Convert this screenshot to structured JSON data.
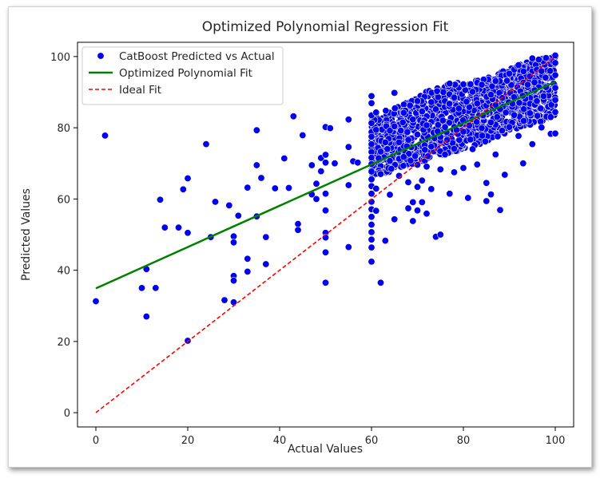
{
  "chart_data": {
    "type": "scatter",
    "title": "Optimized Polynomial Regression Fit",
    "xlabel": "Actual Values",
    "ylabel": "Predicted Values",
    "xlim": [
      -4,
      104
    ],
    "ylim": [
      -4,
      104
    ],
    "xticks": [
      0,
      20,
      40,
      60,
      80,
      100
    ],
    "yticks": [
      0,
      20,
      40,
      60,
      80,
      100
    ],
    "grid": false,
    "legend_position": "top-left",
    "series": [
      {
        "name": "CatBoost Predicted vs Actual",
        "kind": "scatter",
        "color": "#0000ee",
        "points": [
          [
            0,
            31.3
          ],
          [
            2,
            77.8
          ],
          [
            10,
            35
          ],
          [
            11,
            40.3
          ],
          [
            11,
            27
          ],
          [
            13,
            35
          ],
          [
            14,
            59.8
          ],
          [
            15,
            52
          ],
          [
            18,
            52
          ],
          [
            19,
            62.7
          ],
          [
            20,
            65.8
          ],
          [
            20,
            50.5
          ],
          [
            20,
            20.2
          ],
          [
            24,
            75.4
          ],
          [
            25,
            49.3
          ],
          [
            26,
            59.2
          ],
          [
            28,
            31.6
          ],
          [
            29,
            58.2
          ],
          [
            30,
            49.5
          ],
          [
            30,
            47.8
          ],
          [
            30,
            38.4
          ],
          [
            30,
            37.1
          ],
          [
            30,
            31
          ],
          [
            31,
            55.3
          ],
          [
            33,
            63.2
          ],
          [
            33,
            43.2
          ],
          [
            33,
            39.6
          ],
          [
            35,
            79.3
          ],
          [
            35,
            69.5
          ],
          [
            35,
            55.1
          ],
          [
            36,
            65.9
          ],
          [
            37,
            49.3
          ],
          [
            37,
            41.7
          ],
          [
            39,
            63
          ],
          [
            41,
            71.4
          ],
          [
            42,
            63.1
          ],
          [
            43,
            83.2
          ],
          [
            44,
            53
          ],
          [
            44,
            51.3
          ],
          [
            45,
            77.9
          ],
          [
            47,
            69.5
          ],
          [
            47,
            61.3
          ],
          [
            48,
            64.3
          ],
          [
            48,
            60
          ],
          [
            49,
            71.5
          ],
          [
            49,
            67.8
          ],
          [
            50,
            80.2
          ],
          [
            50,
            72.4
          ],
          [
            50,
            70.2
          ],
          [
            50,
            61.5
          ],
          [
            50,
            56.8
          ],
          [
            50,
            50.5
          ],
          [
            50,
            49.2
          ],
          [
            50,
            45
          ],
          [
            50,
            36.5
          ],
          [
            51,
            79.9
          ],
          [
            52,
            70
          ],
          [
            55,
            82.3
          ],
          [
            55,
            74.6
          ],
          [
            55,
            63.9
          ],
          [
            55,
            46.5
          ],
          [
            56,
            70.6
          ],
          [
            57,
            70.2
          ],
          [
            60,
            88.9
          ],
          [
            60,
            86.9
          ],
          [
            60,
            83.5
          ],
          [
            60,
            81.3
          ],
          [
            60,
            78.8
          ],
          [
            60,
            77.5
          ],
          [
            60,
            75.4
          ],
          [
            60,
            73.2
          ],
          [
            60,
            71.6
          ],
          [
            60,
            69.8
          ],
          [
            60,
            67.7
          ],
          [
            60,
            65.5
          ],
          [
            60,
            63.6
          ],
          [
            60,
            61.5
          ],
          [
            60,
            59.2
          ],
          [
            60,
            57.1
          ],
          [
            60,
            55
          ],
          [
            60,
            52.8
          ],
          [
            60,
            50.7
          ],
          [
            60,
            48.6
          ],
          [
            60,
            46.4
          ],
          [
            60,
            42.4
          ],
          [
            61,
            84.3
          ],
          [
            61,
            79.4
          ],
          [
            61,
            62.9
          ],
          [
            61,
            56.7
          ],
          [
            62,
            36.5
          ],
          [
            62,
            67
          ],
          [
            62,
            73.3
          ],
          [
            63,
            75.9
          ],
          [
            63,
            48.3
          ],
          [
            64,
            79.2
          ],
          [
            64,
            70.7
          ],
          [
            64,
            61.2
          ],
          [
            65,
            89.8
          ],
          [
            65,
            80.4
          ],
          [
            65,
            54.3
          ],
          [
            66,
            66.5
          ],
          [
            66,
            75.9
          ],
          [
            67,
            84.2
          ],
          [
            67,
            71.8
          ],
          [
            68,
            64.7
          ],
          [
            68,
            57.4
          ],
          [
            69,
            82.3
          ],
          [
            69,
            59.1
          ],
          [
            69,
            53.8
          ],
          [
            70,
            87.5
          ],
          [
            70,
            78.1
          ],
          [
            70,
            69.6
          ],
          [
            70,
            63.4
          ],
          [
            70,
            56.8
          ],
          [
            71,
            84.6
          ],
          [
            71,
            65.2
          ],
          [
            71,
            59.1
          ],
          [
            72,
            80.7
          ],
          [
            72,
            69.1
          ],
          [
            72,
            55.9
          ],
          [
            73,
            87.2
          ],
          [
            73,
            74.7
          ],
          [
            73,
            62.8
          ],
          [
            74,
            85.2
          ],
          [
            74,
            49.4
          ],
          [
            75,
            50
          ],
          [
            75,
            68.3
          ],
          [
            76,
            80.2
          ],
          [
            76,
            72.5
          ],
          [
            77,
            92.4
          ],
          [
            77,
            61.5
          ],
          [
            78,
            88.5
          ],
          [
            78,
            74.1
          ],
          [
            78,
            67.5
          ],
          [
            79,
            85.4
          ],
          [
            80,
            92.2
          ],
          [
            80,
            78.9
          ],
          [
            80,
            68.7
          ],
          [
            81,
            60.3
          ],
          [
            82,
            90.1
          ],
          [
            82,
            74
          ],
          [
            83,
            86.8
          ],
          [
            83,
            69.7
          ],
          [
            84,
            92.1
          ],
          [
            84,
            79.9
          ],
          [
            85,
            64.5
          ],
          [
            85,
            59.4
          ],
          [
            86,
            89.3
          ],
          [
            86,
            81.5
          ],
          [
            86,
            61.3
          ],
          [
            87,
            93.1
          ],
          [
            87,
            72.5
          ],
          [
            88,
            56.9
          ],
          [
            88,
            85.2
          ],
          [
            89,
            66.8
          ],
          [
            90,
            95.2
          ],
          [
            90,
            80.2
          ],
          [
            91,
            88.6
          ],
          [
            92,
            97.6
          ],
          [
            92,
            77.7
          ],
          [
            93,
            70
          ],
          [
            94,
            92.1
          ],
          [
            95,
            99.5
          ],
          [
            95,
            75.4
          ],
          [
            96,
            87.5
          ],
          [
            97,
            95.9
          ],
          [
            97,
            80.1
          ],
          [
            98,
            99.6
          ],
          [
            98,
            91.4
          ],
          [
            99,
            83
          ],
          [
            99,
            78.3
          ],
          [
            100,
            100.3
          ],
          [
            100,
            98.2
          ],
          [
            100,
            94.8
          ],
          [
            100,
            91.2
          ],
          [
            100,
            87.8
          ],
          [
            100,
            84.4
          ],
          [
            100,
            78.4
          ]
        ],
        "dense_band": {
          "x_range": [
            60,
            100
          ],
          "upper": [
            [
              60,
              83
            ],
            [
              65,
              86
            ],
            [
              70,
              89
            ],
            [
              75,
              92
            ],
            [
              80,
              93
            ],
            [
              85,
              94
            ],
            [
              90,
              97
            ],
            [
              95,
              99
            ],
            [
              100,
              100
            ]
          ],
          "lower": [
            [
              60,
              66
            ],
            [
              65,
              68
            ],
            [
              70,
              70
            ],
            [
              75,
              72
            ],
            [
              80,
              74
            ],
            [
              85,
              76
            ],
            [
              90,
              79
            ],
            [
              95,
              81
            ],
            [
              100,
              83
            ]
          ]
        }
      },
      {
        "name": "Optimized Polynomial Fit",
        "kind": "line",
        "style": "solid",
        "color": "#008000",
        "x": [
          0,
          10,
          20,
          30,
          40,
          50,
          60,
          70,
          80,
          90,
          100
        ],
        "y": [
          34.9,
          40.7,
          46.5,
          52.3,
          58.1,
          63.9,
          69.7,
          75.5,
          81.3,
          87.1,
          92.9
        ]
      },
      {
        "name": "Ideal Fit",
        "kind": "line",
        "style": "dashed",
        "color": "#ff0000",
        "x": [
          0,
          100
        ],
        "y": [
          0,
          100
        ]
      }
    ]
  }
}
